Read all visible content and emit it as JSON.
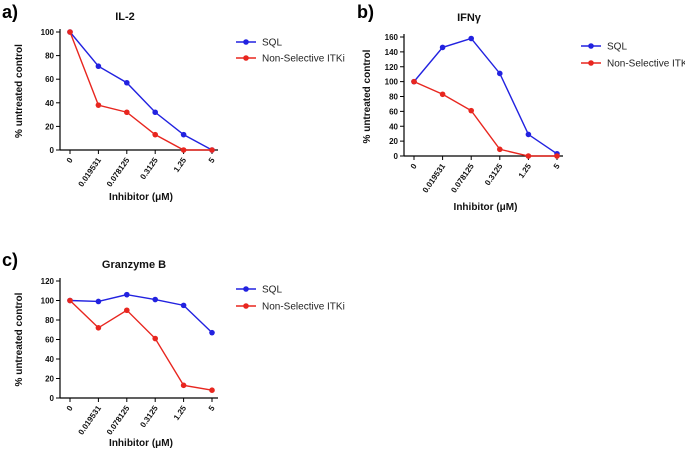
{
  "figure": {
    "panel_labels": [
      "a)",
      "b)",
      "c)"
    ]
  },
  "colors": {
    "SQL": "#2222e0",
    "Non-Selective ITKi": "#e8261f",
    "axis": "#000000"
  },
  "chart_data": [
    {
      "type": "line",
      "panel": "a)",
      "title": "IL-2",
      "xlabel": "Inhibitor (μM)",
      "ylabel": "% untreated control",
      "categories": [
        "0",
        "0.019531",
        "0.078125",
        "0.3125",
        "1.25",
        "5"
      ],
      "ylim": [
        0,
        100
      ],
      "yticks": [
        0,
        20,
        40,
        60,
        80,
        100
      ],
      "legend_position": "top-right",
      "series": [
        {
          "name": "SQL",
          "values": [
            100,
            71,
            57,
            32,
            13,
            0
          ]
        },
        {
          "name": "Non-Selective ITKi",
          "values": [
            100,
            38,
            32,
            13,
            0,
            0
          ]
        }
      ]
    },
    {
      "type": "line",
      "panel": "b)",
      "title": "IFNγ",
      "xlabel": "Inhibitor (μM)",
      "ylabel": "% untreated control",
      "categories": [
        "0",
        "0.019531",
        "0.078125",
        "0.3125",
        "1.25",
        "5"
      ],
      "ylim": [
        0,
        160
      ],
      "yticks": [
        0,
        20,
        40,
        60,
        80,
        100,
        120,
        140,
        160
      ],
      "legend_position": "top-right",
      "series": [
        {
          "name": "SQL",
          "values": [
            100,
            146,
            158,
            111,
            29,
            3
          ]
        },
        {
          "name": "Non-Selective ITKi",
          "values": [
            100,
            83,
            61,
            9,
            0,
            0
          ]
        }
      ]
    },
    {
      "type": "line",
      "panel": "c)",
      "title": "Granzyme B",
      "xlabel": "Inhibitor (μM)",
      "ylabel": "% untreated control",
      "categories": [
        "0",
        "0.019531",
        "0.078125",
        "0.3125",
        "1.25",
        "5"
      ],
      "ylim": [
        0,
        120
      ],
      "yticks": [
        0,
        20,
        40,
        60,
        80,
        100,
        120
      ],
      "legend_position": "top-right",
      "series": [
        {
          "name": "SQL",
          "values": [
            100,
            99,
            106,
            101,
            95,
            67
          ]
        },
        {
          "name": "Non-Selective ITKi",
          "values": [
            100,
            72,
            90,
            61,
            13,
            8
          ]
        }
      ]
    }
  ]
}
